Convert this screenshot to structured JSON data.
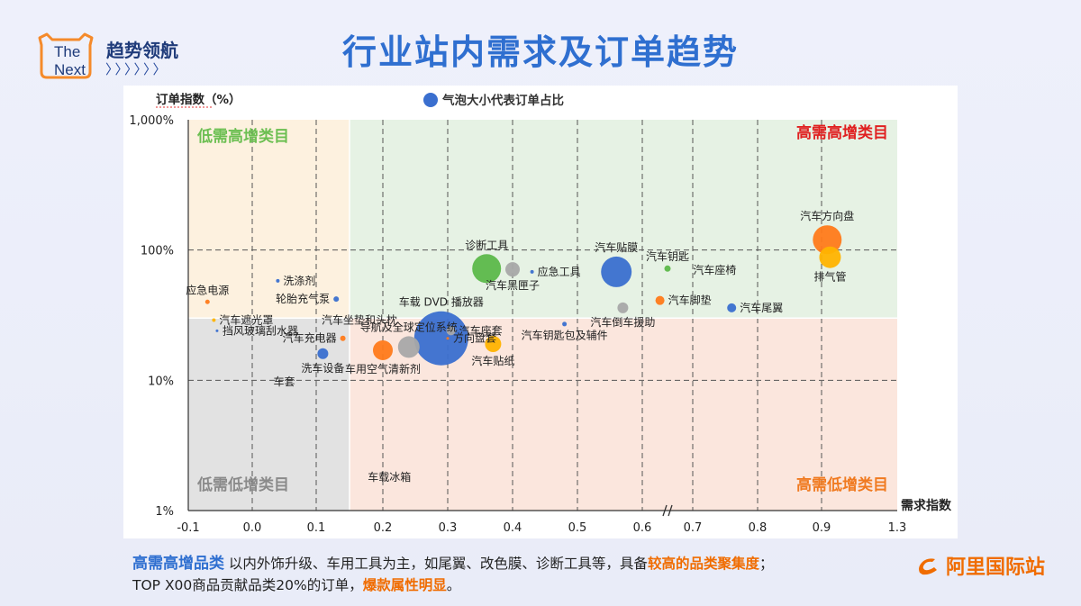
{
  "brand": {
    "logo_text": "The\nNext",
    "title": "趋势领航",
    "arrows": "〉〉〉〉〉〉"
  },
  "page_title": "行业站内需求及订单趋势",
  "colors": {
    "blue": "#3a6fcf",
    "green": "#5cb84a",
    "orange": "#ff7a1a",
    "gray": "#a8a8a8",
    "yellow": "#ffb300",
    "title": "#2f6fd0"
  },
  "chart_data": {
    "type": "scatter",
    "bubble": true,
    "ylabel": "订单指数（%）",
    "xlabel": "需求指数",
    "legend": "气泡大小代表订单占比",
    "y_scale": "log",
    "ylim": [
      1,
      1000
    ],
    "y_ticks": [
      1,
      10,
      100,
      1000
    ],
    "y_tick_labels": [
      "1%",
      "10%",
      "100%",
      "1,000%"
    ],
    "x_ticks": [
      -0.1,
      0,
      0.1,
      0.2,
      0.3,
      0.4,
      0.5,
      0.6,
      0.7,
      0.8,
      0.9,
      1.3
    ],
    "x_tick_labels": [
      "-0.1",
      "0.0",
      "0.1",
      "0.2",
      "0.3",
      "0.4",
      "0.5",
      "0.6",
      "0.7",
      "0.8",
      "0.9",
      "1.3"
    ],
    "x_axis_break_after": 0.6,
    "quadrant_divider": {
      "x": 0.15,
      "y": 30
    },
    "quadrants": [
      {
        "label": "低需高增类目",
        "position": "top-left"
      },
      {
        "label": "高需高增类目",
        "position": "top-right"
      },
      {
        "label": "低需低增类目",
        "position": "bottom-left"
      },
      {
        "label": "高需低增类目",
        "position": "bottom-right"
      }
    ],
    "points": [
      {
        "name": "汽车方向盘",
        "x": 0.93,
        "y": 120,
        "size": 16,
        "color": "orange",
        "label_pos": "above"
      },
      {
        "name": "排气管",
        "x": 0.945,
        "y": 88,
        "size": 12,
        "color": "yellow",
        "label_pos": "below"
      },
      {
        "name": "汽车贴膜",
        "x": 0.56,
        "y": 68,
        "size": 17,
        "color": "blue",
        "label_pos": "above"
      },
      {
        "name": "汽车钥匙",
        "x": 0.65,
        "y": 72,
        "size": 3.5,
        "color": "green",
        "label_pos": "above"
      },
      {
        "name": "汽车座椅",
        "x": 0.69,
        "y": 70,
        "size": 2,
        "color": "none",
        "label_pos": "right"
      },
      {
        "name": "汽车脚垫",
        "x": 0.635,
        "y": 41,
        "size": 5,
        "color": "orange",
        "label_pos": "right"
      },
      {
        "name": "汽车尾翼",
        "x": 0.76,
        "y": 36,
        "size": 5,
        "color": "blue",
        "label_pos": "right"
      },
      {
        "name": "汽车倒车援助",
        "x": 0.57,
        "y": 36,
        "size": 6,
        "color": "gray",
        "label_pos": "below"
      },
      {
        "name": "汽车钥匙包及辅件",
        "x": 0.48,
        "y": 27,
        "size": 2.5,
        "color": "blue",
        "label_pos": "below"
      },
      {
        "name": "诊断工具",
        "x": 0.36,
        "y": 72,
        "size": 16,
        "color": "green",
        "label_pos": "above"
      },
      {
        "name": "汽车黑匣子",
        "x": 0.4,
        "y": 71,
        "size": 8,
        "color": "gray",
        "label_pos": "below"
      },
      {
        "name": "应急工具",
        "x": 0.43,
        "y": 68,
        "size": 2,
        "color": "blue",
        "label_pos": "right"
      },
      {
        "name": "车载 DVD 播放器",
        "x": 0.29,
        "y": 21,
        "size": 30,
        "color": "blue",
        "label_pos": "above"
      },
      {
        "name": "汽车座套",
        "x": 0.305,
        "y": 24,
        "size": 5,
        "color": "gray",
        "label_pos": "right"
      },
      {
        "name": "方向盘套",
        "x": 0.3,
        "y": 21,
        "size": 1.5,
        "color": "orange",
        "label_pos": "right"
      },
      {
        "name": "汽车贴纸",
        "x": 0.37,
        "y": 19,
        "size": 9,
        "color": "yellow",
        "label_pos": "below"
      },
      {
        "name": "车用空气清新剂",
        "x": 0.2,
        "y": 17,
        "size": 11,
        "color": "orange",
        "label_pos": "below"
      },
      {
        "name": "导航及全球定位系统",
        "x": 0.24,
        "y": 18,
        "size": 12,
        "color": "gray",
        "label_pos": "above"
      },
      {
        "name": "洗涤剂",
        "x": 0.04,
        "y": 58,
        "size": 2,
        "color": "blue",
        "label_pos": "right"
      },
      {
        "name": "轮胎充气泵",
        "x": 0.13,
        "y": 42,
        "size": 3,
        "color": "blue",
        "label_pos": "left"
      },
      {
        "name": "应急电源",
        "x": -0.07,
        "y": 40,
        "size": 2.5,
        "color": "orange",
        "label_pos": "above"
      },
      {
        "name": "汽车遮光罩",
        "x": -0.06,
        "y": 29,
        "size": 2,
        "color": "yellow",
        "label_pos": "right"
      },
      {
        "name": "汽车坐垫和头枕",
        "x": 0.1,
        "y": 29,
        "size": 2,
        "color": "none",
        "label_pos": "right"
      },
      {
        "name": "挡风玻璃刮水器",
        "x": -0.055,
        "y": 24,
        "size": 1.5,
        "color": "blue",
        "label_pos": "right"
      },
      {
        "name": "汽车充电器",
        "x": 0.14,
        "y": 21,
        "size": 3,
        "color": "orange",
        "label_pos": "left"
      },
      {
        "name": "洗车设备",
        "x": 0.11,
        "y": 16,
        "size": 6,
        "color": "blue",
        "label_pos": "below"
      },
      {
        "name": "车套",
        "x": 0.05,
        "y": 11.8,
        "size": 1,
        "color": "none",
        "label_pos": "below"
      },
      {
        "name": "车载冰箱",
        "x": 0.21,
        "y": 1.8,
        "size": 1,
        "color": "none",
        "label_pos": "center"
      }
    ]
  },
  "footer": {
    "line1_head": "高需高增品类",
    "line1_mid": " 以内外饰升级、车用工具为主，如尾翼、改色膜、诊断工具等，具备",
    "line1_hl": "较高的品类聚集度",
    "line1_end": "；",
    "line2_start": "TOP X00商品贡献品类20%的订单，",
    "line2_hl": "爆款属性明显",
    "line2_end": "。"
  },
  "alibaba": "阿里国际站"
}
